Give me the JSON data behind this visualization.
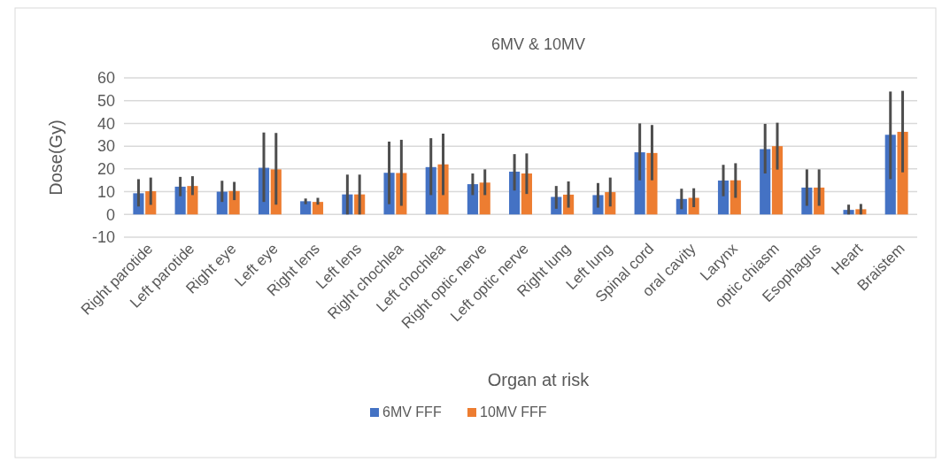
{
  "chart_data": {
    "type": "bar",
    "title": "6MV & 10MV",
    "xlabel": "Organ at risk",
    "ylabel": "Dose(Gy)",
    "categories": [
      "Right parotide",
      "Left parotide",
      "Right eye",
      "Left eye",
      "Right lens",
      "Left lens",
      "Right chochlea",
      "Left chochlea",
      "Right optic nerve",
      "Left optic nerve",
      "Right lung",
      "Left lung",
      "Spinal cord",
      "oral cavity",
      "Larynx",
      "optic chiasm",
      "Esophagus",
      "Heart",
      "Braistem"
    ],
    "series": [
      {
        "name": "6MV FFF",
        "color": "#4472c4",
        "values": [
          9.3,
          12.2,
          10,
          20.5,
          5.8,
          8.8,
          18.3,
          20.8,
          13.3,
          18.8,
          7.7,
          8.5,
          27.3,
          6.8,
          14.9,
          28.7,
          11.8,
          2,
          35
        ],
        "errors": [
          [
            3.5,
            15.5
          ],
          [
            8,
            16.5
          ],
          [
            5.5,
            14.8
          ],
          [
            5.5,
            36
          ],
          [
            4.5,
            7
          ],
          [
            0,
            17.5
          ],
          [
            4.5,
            32
          ],
          [
            8.5,
            33.5
          ],
          [
            8.5,
            18
          ],
          [
            10.5,
            26.5
          ],
          [
            2.5,
            12.5
          ],
          [
            3,
            13.8
          ],
          [
            15,
            40
          ],
          [
            2.3,
            11.3
          ],
          [
            8,
            21.8
          ],
          [
            18,
            39.8
          ],
          [
            3.8,
            19.8
          ],
          [
            0,
            4.3
          ],
          [
            15.5,
            54
          ]
        ]
      },
      {
        "name": "10MV FFF",
        "color": "#ed7d31",
        "values": [
          10.2,
          12.5,
          10.3,
          19.8,
          5.5,
          8.8,
          18.2,
          22,
          14,
          18,
          8.7,
          9.8,
          27,
          7.3,
          15,
          30,
          11.8,
          2.3,
          36.3
        ],
        "errors": [
          [
            4.2,
            16.2
          ],
          [
            8.5,
            16.8
          ],
          [
            6.3,
            14.3
          ],
          [
            4.3,
            35.8
          ],
          [
            4.3,
            7.3
          ],
          [
            0,
            17.5
          ],
          [
            3.8,
            32.8
          ],
          [
            8.5,
            35.5
          ],
          [
            8.5,
            19.8
          ],
          [
            9,
            26.8
          ],
          [
            3,
            14.5
          ],
          [
            3.5,
            16.2
          ],
          [
            15,
            39.3
          ],
          [
            3.2,
            11.5
          ],
          [
            7.3,
            22.5
          ],
          [
            19.7,
            40.3
          ],
          [
            3.8,
            19.8
          ],
          [
            0,
            4.6
          ],
          [
            18.5,
            54.3
          ]
        ]
      }
    ],
    "ylim": [
      -10,
      60
    ],
    "yticks": [
      -10,
      0,
      10,
      20,
      30,
      40,
      50,
      60
    ],
    "grid": "y",
    "legend": "bottom"
  }
}
